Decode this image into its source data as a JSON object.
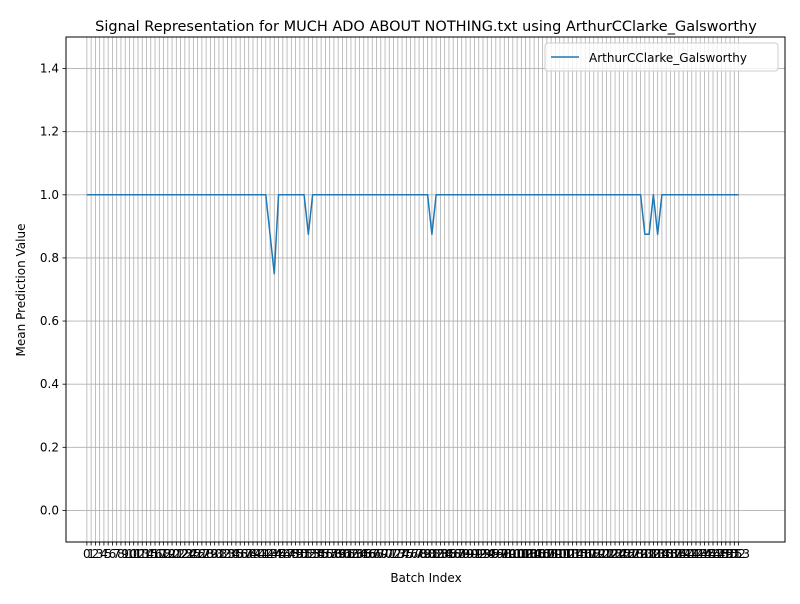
{
  "chart_data": {
    "type": "line",
    "title": "Signal Representation for MUCH ADO ABOUT NOTHING.txt using ArthurCClarke_Galsworthy",
    "xlabel": "Batch Index",
    "ylabel": "Mean Prediction Value",
    "xlim": [
      -4.9,
      163.9
    ],
    "ylim": [
      -0.1,
      1.5
    ],
    "yticks": [
      0.0,
      0.2,
      0.4,
      0.6,
      0.8,
      1.0,
      1.2,
      1.4
    ],
    "x_tick_count": 153,
    "x_tick_labels_last": "153",
    "grid": true,
    "legend_position": "upper right",
    "colors": {
      "line": "#1f77b4",
      "grid": "#b0b0b0"
    },
    "series": [
      {
        "name": "ArthurCClarke_Galsworthy",
        "points": [
          [
            0,
            1.0
          ],
          [
            42,
            1.0
          ],
          [
            43,
            0.875
          ],
          [
            44,
            0.75
          ],
          [
            45,
            1.0
          ],
          [
            51,
            1.0
          ],
          [
            52,
            0.875
          ],
          [
            53,
            1.0
          ],
          [
            80,
            1.0
          ],
          [
            81,
            0.875
          ],
          [
            82,
            1.0
          ],
          [
            130,
            1.0
          ],
          [
            131,
            0.875
          ],
          [
            132,
            0.875
          ],
          [
            133,
            1.0
          ],
          [
            134,
            0.875
          ],
          [
            135,
            1.0
          ],
          [
            153,
            1.0
          ]
        ]
      }
    ]
  }
}
